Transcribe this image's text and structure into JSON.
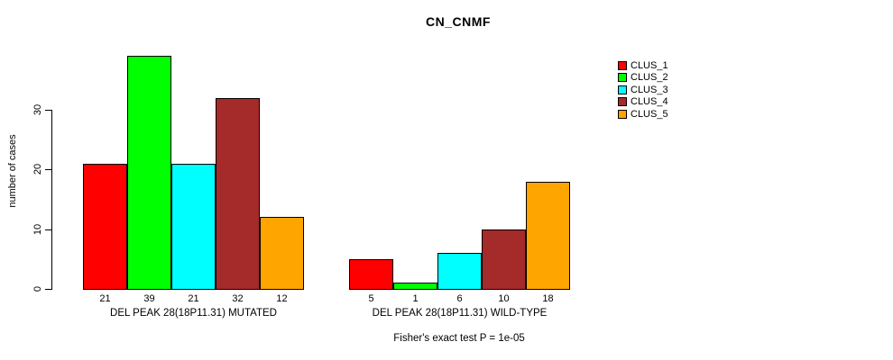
{
  "title": "CN_CNMF",
  "y_axis": {
    "label": "number of cases",
    "ticks": [
      0,
      10,
      20,
      30
    ]
  },
  "footnote": "Fisher's exact test P = 1e-05",
  "chart_data": {
    "type": "bar",
    "title": "CN_CNMF",
    "xlabel": "",
    "ylabel": "number of cases",
    "ylim": [
      0,
      39
    ],
    "yticks": [
      0,
      10,
      20,
      30
    ],
    "grid": false,
    "legend_position": "top-right",
    "categories": [
      "DEL PEAK 28(18P11.31) MUTATED",
      "DEL PEAK 28(18P11.31) WILD-TYPE"
    ],
    "series": [
      {
        "name": "CLUS_1",
        "color": "#FF0000",
        "values": [
          21,
          5
        ]
      },
      {
        "name": "CLUS_2",
        "color": "#00FF00",
        "values": [
          39,
          1
        ]
      },
      {
        "name": "CLUS_3",
        "color": "#00FFFF",
        "values": [
          21,
          6
        ]
      },
      {
        "name": "CLUS_4",
        "color": "#A52A2A",
        "values": [
          32,
          10
        ]
      },
      {
        "name": "CLUS_5",
        "color": "#FFA500",
        "values": [
          12,
          18
        ]
      }
    ],
    "bar_value_labels": true,
    "annotation": "Fisher's exact test P = 1e-05"
  }
}
